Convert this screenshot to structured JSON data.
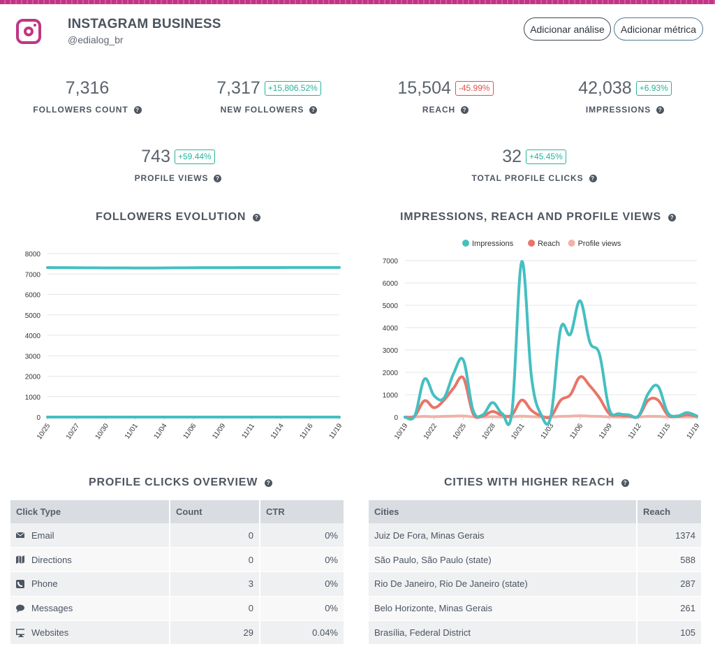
{
  "header": {
    "title": "INSTAGRAM BUSINESS",
    "handle": "@edialog_br",
    "buttons": {
      "add_analysis": "Adicionar análise",
      "add_metric": "Adicionar métrica"
    }
  },
  "kpis": {
    "followers_count": {
      "value": "7,316",
      "label": "FOLLOWERS COUNT"
    },
    "new_followers": {
      "value": "7,317",
      "change": "+15,806.52%",
      "label": "NEW FOLLOWERS"
    },
    "reach": {
      "value": "15,504",
      "change": "-45.99%",
      "label": "REACH"
    },
    "impressions": {
      "value": "42,038",
      "change": "+6.93%",
      "label": "IMPRESSIONS"
    },
    "profile_views": {
      "value": "743",
      "change": "+59.44%",
      "label": "PROFILE VIEWS"
    },
    "total_profile_clicks": {
      "value": "32",
      "change": "+45.45%",
      "label": "TOTAL PROFILE CLICKS"
    }
  },
  "colors": {
    "positive": "#27b39a",
    "negative": "#e0524a",
    "impressions": "#45bfc1",
    "reach": "#ea7468",
    "profile_views": "#f0b2a8",
    "followers": "#45bfc1",
    "brand": "#c13584"
  },
  "sections": {
    "followers_evolution": "FOLLOWERS EVOLUTION",
    "impressions_reach_views": "IMPRESSIONS, REACH AND PROFILE VIEWS",
    "profile_clicks_overview": "PROFILE CLICKS OVERVIEW",
    "cities_higher_reach": "CITIES WITH HIGHER REACH"
  },
  "chart_data": [
    {
      "type": "line",
      "title": "FOLLOWERS EVOLUTION",
      "x_ticks": [
        "10/25",
        "10/27",
        "10/30",
        "11/01",
        "11/04",
        "11/06",
        "11/09",
        "11/11",
        "11/14",
        "11/16",
        "11/19"
      ],
      "y_ticks": [
        "0",
        "1000",
        "2000",
        "3000",
        "4000",
        "5000",
        "6000",
        "7000",
        "8000"
      ],
      "ylim": [
        0,
        8000
      ],
      "grid": true,
      "series": [
        {
          "values": [
            7316,
            7310,
            7305,
            7300,
            7298,
            7295,
            7300,
            7305,
            7310,
            7312,
            7315,
            7316,
            7318,
            7320,
            7320,
            7320
          ]
        },
        {
          "values": [
            0,
            0,
            0,
            0,
            0,
            0,
            0,
            0,
            0,
            0,
            0,
            0,
            0,
            0,
            0,
            0
          ]
        }
      ]
    },
    {
      "type": "line",
      "title": "IMPRESSIONS, REACH AND PROFILE VIEWS",
      "legend": "top",
      "x_ticks": [
        "10/19",
        "10/22",
        "10/25",
        "10/28",
        "10/31",
        "11/03",
        "11/06",
        "11/09",
        "11/12",
        "11/15",
        "11/19"
      ],
      "y_ticks": [
        "0",
        "1000",
        "2000",
        "3000",
        "4000",
        "5000",
        "6000",
        "7000"
      ],
      "ylim": [
        0,
        7000
      ],
      "grid": true,
      "series": [
        {
          "name": "Impressions",
          "values": [
            0,
            50,
            1700,
            950,
            850,
            1950,
            2550,
            300,
            100,
            650,
            150,
            250,
            6950,
            1800,
            100,
            50,
            3950,
            3700,
            5200,
            3350,
            2800,
            350,
            150,
            100,
            50,
            1050,
            1380,
            200,
            50,
            200,
            50
          ]
        },
        {
          "name": "Reach",
          "values": [
            0,
            50,
            730,
            420,
            750,
            1300,
            1750,
            150,
            50,
            250,
            80,
            100,
            760,
            300,
            50,
            30,
            750,
            1000,
            1800,
            1400,
            850,
            150,
            80,
            50,
            30,
            750,
            760,
            100,
            30,
            100,
            30
          ]
        },
        {
          "name": "Profile views",
          "values": [
            0,
            10,
            30,
            20,
            30,
            40,
            50,
            10,
            5,
            20,
            5,
            10,
            40,
            20,
            5,
            5,
            30,
            40,
            60,
            40,
            30,
            10,
            5,
            5,
            5,
            30,
            30,
            5,
            5,
            10,
            5
          ]
        }
      ]
    }
  ],
  "profile_clicks": {
    "headers": [
      "Click Type",
      "Count",
      "CTR"
    ],
    "rows": [
      {
        "icon": "envelope-icon",
        "type": "Email",
        "count": "0",
        "ctr": "0%"
      },
      {
        "icon": "map-icon",
        "type": "Directions",
        "count": "0",
        "ctr": "0%"
      },
      {
        "icon": "phone-icon",
        "type": "Phone",
        "count": "3",
        "ctr": "0%"
      },
      {
        "icon": "comment-icon",
        "type": "Messages",
        "count": "0",
        "ctr": "0%"
      },
      {
        "icon": "desktop-icon",
        "type": "Websites",
        "count": "29",
        "ctr": "0.04%"
      }
    ]
  },
  "cities": {
    "headers": [
      "Cities",
      "Reach"
    ],
    "rows": [
      {
        "city": "Juiz De Fora, Minas Gerais",
        "reach": "1374"
      },
      {
        "city": "São Paulo, São Paulo (state)",
        "reach": "588"
      },
      {
        "city": "Rio De Janeiro, Rio De Janeiro (state)",
        "reach": "287"
      },
      {
        "city": "Belo Horizonte, Minas Gerais",
        "reach": "261"
      },
      {
        "city": "Brasília, Federal District",
        "reach": "105"
      }
    ]
  }
}
